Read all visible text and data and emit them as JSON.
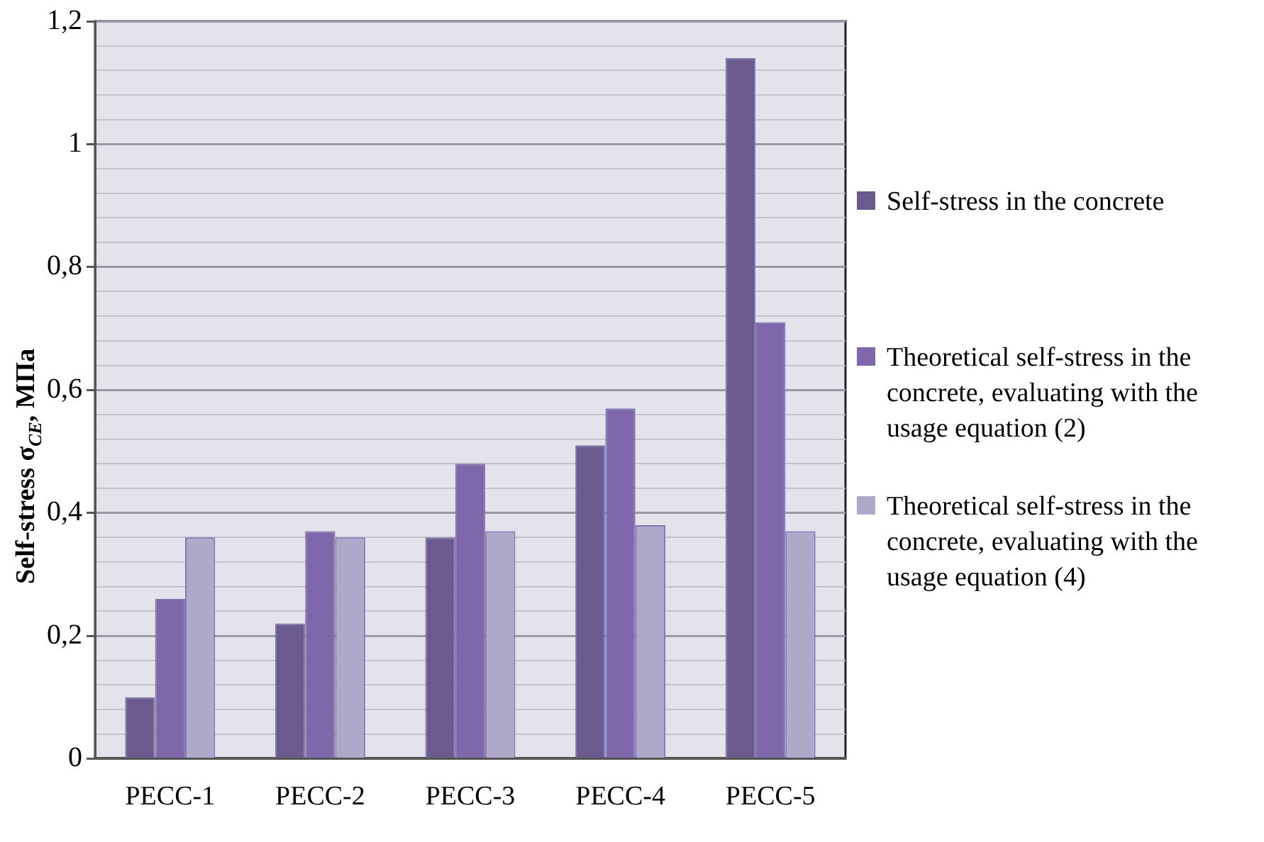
{
  "chart_data": {
    "type": "bar",
    "ylabel": "Self-stress σ$_{CE}$, МПа",
    "categories": [
      "PECC-1",
      "PECC-2",
      "PECC-3",
      "PECC-4",
      "PECC-5"
    ],
    "series": [
      {
        "name": "Self-stress in the concrete",
        "color": "#6a5a8e",
        "values": [
          0.1,
          0.22,
          0.36,
          0.51,
          1.14
        ]
      },
      {
        "name": "Theoretical self-stress in the concrete, evaluating with the usage  equation (2)",
        "color": "#7e67aa",
        "values": [
          0.26,
          0.37,
          0.48,
          0.57,
          0.71
        ]
      },
      {
        "name": "Theoretical self-stress in the concrete, evaluating with the usage equation (4)",
        "color": "#b0a8c8",
        "values": [
          0.36,
          0.36,
          0.37,
          0.38,
          0.37
        ]
      }
    ],
    "ylim": [
      0,
      1.2
    ],
    "yticks": [
      0,
      {
        "value": 0.04,
        "label": null
      },
      {
        "value": 0.08,
        "label": null
      },
      {
        "value": 0.12,
        "label": null
      },
      {
        "value": 0.16,
        "label": null
      },
      {
        "value": 0.2,
        "label": "0,2"
      },
      {
        "value": 0.24,
        "label": null
      },
      {
        "value": 0.28,
        "label": null
      },
      {
        "value": 0.32,
        "label": null
      },
      {
        "value": 0.36,
        "label": null
      },
      {
        "value": 0.4,
        "label": "0,4"
      },
      {
        "value": 0.44,
        "label": null
      },
      {
        "value": 0.48,
        "label": null
      },
      {
        "value": 0.52,
        "label": null
      },
      {
        "value": 0.56,
        "label": null
      },
      {
        "value": 0.6,
        "label": "0,6"
      },
      {
        "value": 0.64,
        "label": null
      },
      {
        "value": 0.68,
        "label": null
      },
      {
        "value": 0.72,
        "label": null
      },
      {
        "value": 0.76,
        "label": null
      },
      {
        "value": 0.8,
        "label": "0,8"
      },
      {
        "value": 0.84,
        "label": null
      },
      {
        "value": 0.88,
        "label": null
      },
      {
        "value": 0.92,
        "label": null
      },
      {
        "value": 0.96,
        "label": null
      },
      {
        "value": 1,
        "label": "1"
      },
      {
        "value": 1.04,
        "label": null
      },
      {
        "value": 1.08,
        "label": null
      },
      {
        "value": 1.12,
        "label": null
      },
      {
        "value": 1.16,
        "label": null
      },
      {
        "value": 1.2,
        "label": "1,2"
      }
    ],
    "grid": "y",
    "legend": "right"
  }
}
